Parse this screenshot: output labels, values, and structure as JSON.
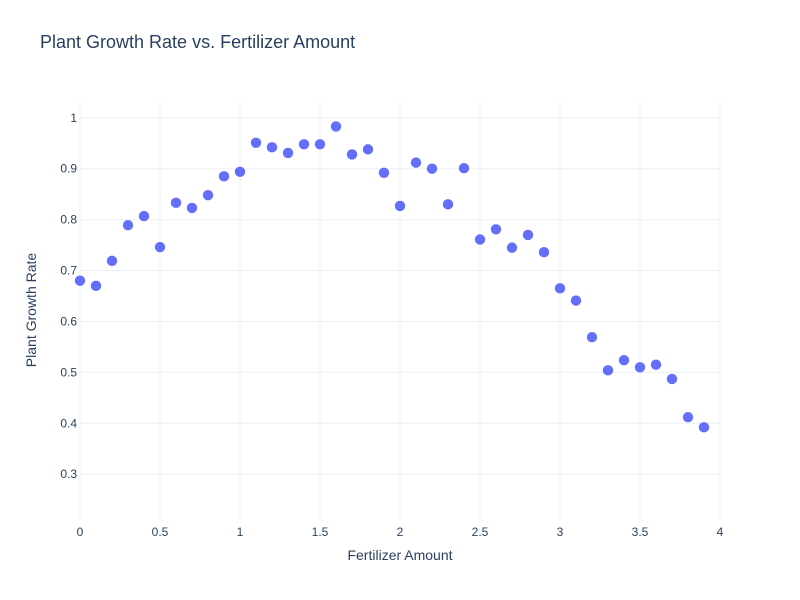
{
  "colors": {
    "marker": "#636efa",
    "text": "#2a3f5f",
    "grid": "#ebf0f8",
    "background": "#ffffff"
  },
  "chart_data": {
    "type": "scatter",
    "title": "Plant Growth Rate vs. Fertilizer Amount",
    "xlabel": "Fertilizer Amount",
    "ylabel": "Plant Growth Rate",
    "xlim": [
      0,
      4
    ],
    "ylim": [
      0.21,
      1.035
    ],
    "grid": true,
    "legend": "none",
    "xticks": [
      0,
      0.5,
      1,
      1.5,
      2,
      2.5,
      3,
      3.5,
      4
    ],
    "xtick_labels": [
      "0",
      "0.5",
      "1",
      "1.5",
      "2",
      "2.5",
      "3",
      "3.5",
      "4"
    ],
    "yticks": [
      0.3,
      0.4,
      0.5,
      0.6,
      0.7,
      0.8,
      0.9,
      1
    ],
    "ytick_labels": [
      "0.3",
      "0.4",
      "0.5",
      "0.6",
      "0.7",
      "0.8",
      "0.9",
      "1"
    ],
    "series": [
      {
        "name": "Plant Growth Rate",
        "x": [
          0,
          0.1,
          0.2,
          0.3,
          0.4,
          0.5,
          0.6,
          0.7,
          0.8,
          0.9,
          1.0,
          1.1,
          1.2,
          1.3,
          1.4,
          1.5,
          1.6,
          1.7,
          1.8,
          1.9,
          2.0,
          2.1,
          2.2,
          2.3,
          2.4,
          2.5,
          2.6,
          2.7,
          2.8,
          2.9,
          3.0,
          3.1,
          3.2,
          3.3,
          3.4,
          3.5,
          3.6,
          3.7,
          3.8,
          3.9
        ],
        "y": [
          0.68,
          0.67,
          0.719,
          0.789,
          0.807,
          0.746,
          0.833,
          0.823,
          0.848,
          0.885,
          0.894,
          0.951,
          0.942,
          0.931,
          0.948,
          0.948,
          0.983,
          0.928,
          0.938,
          0.892,
          0.827,
          0.912,
          0.9,
          0.83,
          0.901,
          0.761,
          0.781,
          0.745,
          0.77,
          0.736,
          0.665,
          0.641,
          0.569,
          0.504,
          0.524,
          0.51,
          0.515,
          0.487,
          0.412,
          0.392
        ]
      }
    ]
  }
}
